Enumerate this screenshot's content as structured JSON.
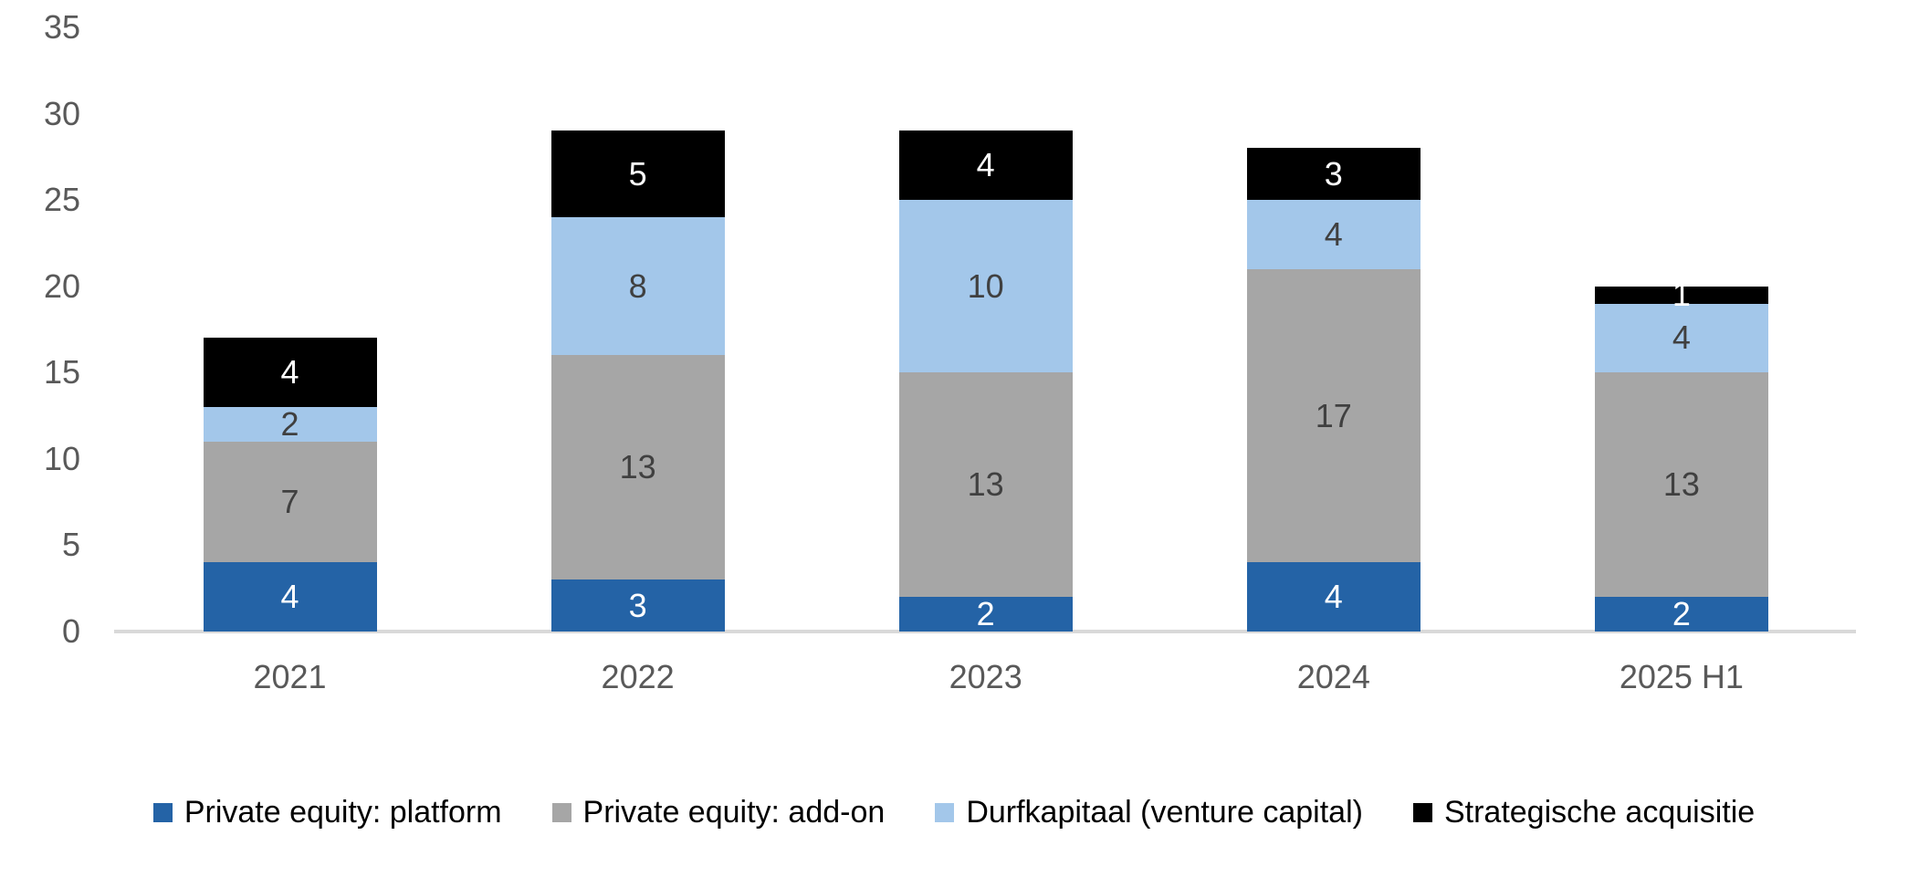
{
  "chart_data": {
    "type": "bar",
    "stacked": true,
    "title": "",
    "xlabel": "",
    "ylabel": "",
    "categories": [
      "2021",
      "2022",
      "2023",
      "2024",
      "2025 H1"
    ],
    "series": [
      {
        "name": "Private equity: platform",
        "color": "#2463A6",
        "label_color": "#FFFFFF",
        "values": [
          4,
          3,
          2,
          4,
          2
        ]
      },
      {
        "name": "Private equity: add-on",
        "color": "#A6A6A6",
        "label_color": "#404040",
        "values": [
          7,
          13,
          13,
          17,
          13
        ]
      },
      {
        "name": "Durfkapitaal (venture capital)",
        "color": "#A3C7EA",
        "label_color": "#404040",
        "values": [
          2,
          8,
          10,
          4,
          4
        ]
      },
      {
        "name": "Strategische acquisitie",
        "color": "#000000",
        "label_color": "#FFFFFF",
        "values": [
          4,
          5,
          4,
          3,
          1
        ]
      }
    ],
    "totals": [
      17,
      29,
      29,
      28,
      20
    ],
    "y_axis": {
      "min": 0,
      "max": 35,
      "step": 5,
      "tick_labels": [
        "0",
        "5",
        "10",
        "15",
        "20",
        "25",
        "30",
        "35"
      ]
    },
    "grid": false,
    "legend_position": "bottom"
  },
  "colors": {
    "background": "#FFFFFF",
    "axis_line": "#D9D9D9",
    "tick_text": "#595959",
    "category_text": "#595959",
    "legend_text": "#000000"
  }
}
